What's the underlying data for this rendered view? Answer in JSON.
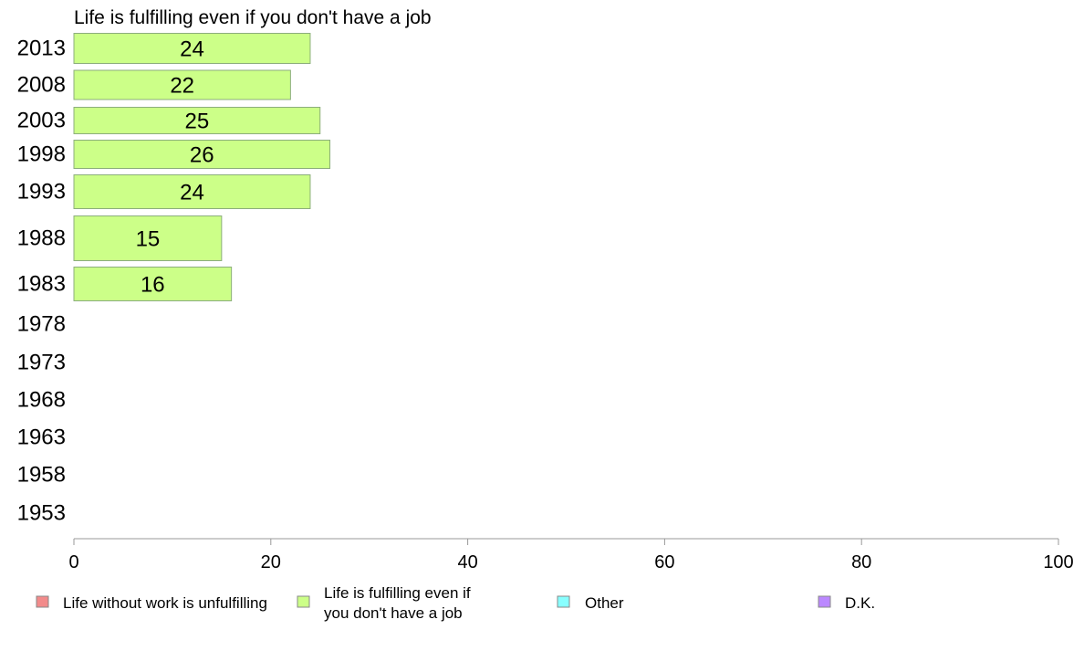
{
  "chart_data": {
    "type": "bar",
    "orientation": "horizontal",
    "title": "Life is fulfilling even if you don't have a job",
    "xlabel": "",
    "ylabel": "",
    "xlim": [
      0,
      100
    ],
    "x_ticks": [
      "0",
      "20",
      "40",
      "60",
      "80",
      "100"
    ],
    "grid": false,
    "legend_position": "bottom",
    "categories": [
      "2013",
      "2008",
      "2003",
      "1998",
      "1993",
      "1988",
      "1983",
      "1978",
      "1973",
      "1968",
      "1963",
      "1958",
      "1953"
    ],
    "series": [
      {
        "name": "Life is fulfilling even if you don't have a job",
        "color": "#ccff88",
        "values": [
          24,
          22,
          25,
          26,
          24,
          15,
          16,
          null,
          null,
          null,
          null,
          null,
          null
        ],
        "labels": [
          "24",
          "22",
          "25",
          "26",
          "24",
          "15",
          "16",
          "",
          "",
          "",
          "",
          "",
          ""
        ]
      }
    ],
    "legend": [
      {
        "label_lines": [
          "Life without work is unfulfilling"
        ],
        "color": "#f28b8b"
      },
      {
        "label_lines": [
          "Life is fulfilling even if",
          "you don't have a job"
        ],
        "color": "#ccff88"
      },
      {
        "label_lines": [
          "Other"
        ],
        "color": "#88ffff"
      },
      {
        "label_lines": [
          "D.K."
        ],
        "color": "#bb88ff"
      }
    ]
  }
}
